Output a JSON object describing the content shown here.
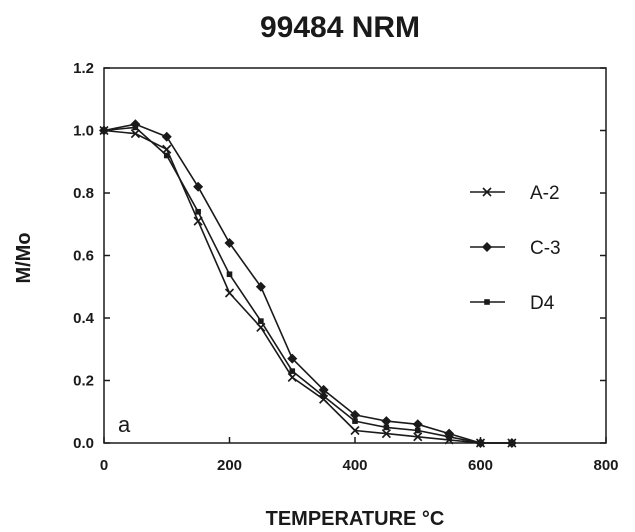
{
  "chart_data": {
    "type": "line",
    "title": "99484 NRM",
    "xlabel": "TEMPERATURE °C",
    "ylabel": "M/Mo",
    "panel_label": "a",
    "xlim": [
      0,
      800
    ],
    "ylim": [
      0,
      1.2
    ],
    "x_ticks": [
      "0",
      "200",
      "400",
      "600",
      "800"
    ],
    "y_ticks": [
      "0.0",
      "0.2",
      "0.4",
      "0.6",
      "0.8",
      "1.0",
      "1.2"
    ],
    "grid": false,
    "legend_position": "right",
    "x": [
      0,
      50,
      100,
      150,
      200,
      250,
      300,
      350,
      400,
      450,
      500,
      550,
      600,
      650
    ],
    "series": [
      {
        "name": "A-2",
        "marker": "x",
        "values": [
          1.0,
          0.99,
          0.94,
          0.71,
          0.48,
          0.37,
          0.21,
          0.14,
          0.04,
          0.03,
          0.02,
          0.01,
          0.0,
          0.0
        ]
      },
      {
        "name": "C-3",
        "marker": "diamond",
        "values": [
          1.0,
          1.02,
          0.98,
          0.82,
          0.64,
          0.5,
          0.27,
          0.17,
          0.09,
          0.07,
          0.06,
          0.03,
          0.0,
          0.0
        ]
      },
      {
        "name": "D4",
        "marker": "square",
        "values": [
          1.0,
          1.01,
          0.92,
          0.74,
          0.54,
          0.39,
          0.23,
          0.15,
          0.07,
          0.05,
          0.04,
          0.02,
          0.0,
          0.0
        ]
      }
    ]
  }
}
